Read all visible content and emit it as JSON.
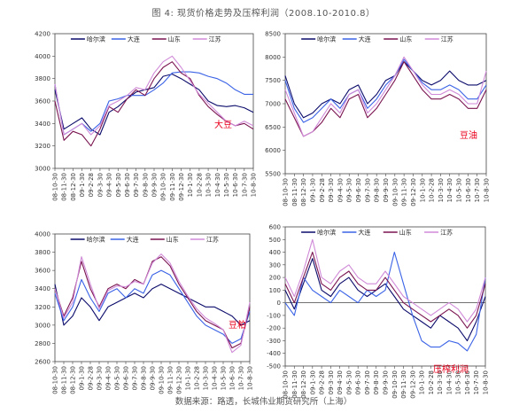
{
  "figure": {
    "title": "图 4:  现货价格走势及压榨利润（2008.10-2010.8）",
    "source": "数据来源：路透，长城伟业期货研究所（上海）"
  },
  "colors": {
    "哈尔滨": "#0b0b6b",
    "大连": "#3b63e6",
    "山东": "#7a1450",
    "江苏": "#d08ad8"
  },
  "chart_data": [
    {
      "type": "line",
      "annotation": "大豆",
      "ylim": [
        3000,
        4200
      ],
      "yticks": [
        "3000",
        "3200",
        "3400",
        "3600",
        "3800",
        "4000",
        "4200"
      ],
      "xticks": [
        "08-10-30",
        "08-11-30",
        "08-12-30",
        "09-1-30",
        "09-2-28",
        "09-3-30",
        "09-4-30",
        "09-5-30",
        "09-6-30",
        "09-7-30",
        "09-8-30",
        "09-9-30",
        "09-10-30",
        "09-11-30",
        "09-12-30",
        "10-1-30",
        "10-2-28",
        "10-3-30",
        "10-4-30",
        "10-5-30",
        "10-6-30",
        "10-7-30",
        "10-8-30"
      ],
      "x": [
        0,
        1,
        2,
        3,
        4,
        5,
        6,
        7,
        8,
        9,
        10,
        11,
        12,
        13,
        14,
        15,
        16,
        17,
        18,
        19,
        20,
        21,
        22
      ],
      "legend": [
        "哈尔滨",
        "大连",
        "山东",
        "江苏"
      ],
      "series": [
        {
          "name": "哈尔滨",
          "values": [
            3700,
            3350,
            3400,
            3450,
            3350,
            3300,
            3500,
            3550,
            3620,
            3680,
            3700,
            3720,
            3820,
            3840,
            3800,
            3750,
            3700,
            3600,
            3560,
            3550,
            3560,
            3540,
            3500
          ]
        },
        {
          "name": "大连",
          "values": [
            3750,
            3300,
            3350,
            3400,
            3330,
            3400,
            3600,
            3620,
            3650,
            3650,
            3650,
            3700,
            3760,
            3850,
            3860,
            3860,
            3850,
            3820,
            3800,
            3760,
            3700,
            3660,
            3660
          ]
        },
        {
          "name": "山东",
          "values": [
            3600,
            3250,
            3330,
            3300,
            3200,
            3350,
            3550,
            3500,
            3620,
            3700,
            3650,
            3800,
            3900,
            3950,
            3850,
            3800,
            3650,
            3550,
            3480,
            3420,
            3380,
            3400,
            3350
          ]
        },
        {
          "name": "江苏",
          "values": [
            3750,
            3300,
            3350,
            3400,
            3300,
            3380,
            3560,
            3600,
            3650,
            3720,
            3700,
            3850,
            3950,
            4000,
            3900,
            3780,
            3660,
            3580,
            3500,
            3420,
            3380,
            3420,
            3380
          ]
        }
      ]
    },
    {
      "type": "line",
      "annotation": "豆油",
      "ylim": [
        5500,
        8500
      ],
      "yticks": [
        "5500",
        "6000",
        "6500",
        "7000",
        "7500",
        "8000",
        "8500"
      ],
      "xticks": [
        "08-10-30",
        "08-11-30",
        "08-12-30",
        "09-1-30",
        "09-2-28",
        "09-3-30",
        "09-4-30",
        "09-5-30",
        "09-6-30",
        "09-7-30",
        "09-8-30",
        "09-9-30",
        "09-10-30",
        "09-11-30",
        "09-12-30",
        "10-1-30",
        "10-2-28",
        "10-3-30",
        "10-4-30",
        "10-5-30",
        "10-6-30",
        "10-7-30",
        "10-8-30"
      ],
      "x": [
        0,
        1,
        2,
        3,
        4,
        5,
        6,
        7,
        8,
        9,
        10,
        11,
        12,
        13,
        14,
        15,
        16,
        17,
        18,
        19,
        20,
        21,
        22
      ],
      "legend": [
        "哈尔滨",
        "大连",
        "山东",
        "江苏"
      ],
      "series": [
        {
          "name": "哈尔滨",
          "values": [
            7600,
            7000,
            6700,
            6800,
            7000,
            7100,
            7000,
            7300,
            7400,
            7000,
            7200,
            7500,
            7600,
            7900,
            7700,
            7500,
            7400,
            7500,
            7700,
            7500,
            7400,
            7400,
            7500
          ]
        },
        {
          "name": "大连",
          "values": [
            7500,
            6900,
            6600,
            6700,
            6900,
            7100,
            6900,
            7200,
            7300,
            6900,
            7100,
            7400,
            7600,
            7950,
            7700,
            7450,
            7300,
            7300,
            7400,
            7300,
            7100,
            7100,
            7400
          ]
        },
        {
          "name": "山东",
          "values": [
            7100,
            6700,
            6300,
            6400,
            6600,
            6900,
            6700,
            7100,
            7200,
            6700,
            6900,
            7200,
            7500,
            7900,
            7600,
            7300,
            7100,
            7100,
            7200,
            7100,
            6900,
            6900,
            7300
          ]
        },
        {
          "name": "江苏",
          "values": [
            7300,
            6800,
            6300,
            6400,
            6700,
            7000,
            6800,
            7200,
            7300,
            6800,
            7000,
            7300,
            7600,
            8000,
            7700,
            7400,
            7200,
            7200,
            7300,
            7200,
            7000,
            7000,
            7700
          ]
        }
      ]
    },
    {
      "type": "line",
      "annotation": "豆粕",
      "ylim": [
        2600,
        4000
      ],
      "yticks": [
        "2600",
        "2800",
        "3000",
        "3200",
        "3400",
        "3600",
        "3800",
        "4000"
      ],
      "xticks": [
        "08-10-30",
        "08-11-30",
        "08-12-30",
        "09-1-30",
        "09-2-28",
        "09-3-30",
        "09-4-30",
        "09-5-30",
        "09-6-30",
        "09-7-30",
        "09-8-30",
        "09-9-30",
        "09-10-30",
        "09-11-30",
        "09-12-30",
        "10-1-30",
        "10-2-28",
        "10-3-30",
        "10-4-30",
        "10-5-30",
        "10-6-30",
        "10-7-30",
        "10-8-30"
      ],
      "x": [
        0,
        1,
        2,
        3,
        4,
        5,
        6,
        7,
        8,
        9,
        10,
        11,
        12,
        13,
        14,
        15,
        16,
        17,
        18,
        19,
        20,
        21,
        22
      ],
      "legend": [
        "哈尔滨",
        "大连",
        "山东",
        "江苏"
      ],
      "series": [
        {
          "name": "哈尔滨",
          "values": [
            3450,
            3000,
            3100,
            3300,
            3200,
            3050,
            3200,
            3250,
            3300,
            3350,
            3300,
            3400,
            3450,
            3400,
            3350,
            3300,
            3250,
            3200,
            3200,
            3150,
            3100,
            3000,
            3050
          ]
        },
        {
          "name": "大连",
          "values": [
            3350,
            3050,
            3200,
            3500,
            3300,
            3150,
            3350,
            3400,
            3300,
            3400,
            3350,
            3550,
            3600,
            3550,
            3400,
            3250,
            3100,
            3000,
            2950,
            2900,
            2800,
            2850,
            3150
          ]
        },
        {
          "name": "山东",
          "values": [
            3400,
            3100,
            3300,
            3700,
            3400,
            3200,
            3400,
            3450,
            3400,
            3500,
            3450,
            3700,
            3750,
            3650,
            3450,
            3300,
            3150,
            3050,
            3000,
            2950,
            2750,
            2800,
            3200
          ]
        },
        {
          "name": "江苏",
          "values": [
            3400,
            3080,
            3250,
            3750,
            3450,
            3180,
            3380,
            3430,
            3420,
            3480,
            3450,
            3680,
            3780,
            3680,
            3480,
            3320,
            3180,
            3080,
            3020,
            2950,
            2700,
            2780,
            3250
          ]
        }
      ]
    },
    {
      "type": "line",
      "annotation": "压榨利润",
      "ylim": [
        -500,
        600
      ],
      "yticks": [
        "-500",
        "-400",
        "-300",
        "-200",
        "-100",
        "0",
        "100",
        "200",
        "300",
        "400",
        "500",
        "600"
      ],
      "xticks": [
        "08-10-30",
        "08-11-30",
        "08-12-30",
        "09-1-30",
        "09-2-28",
        "09-3-30",
        "09-4-30",
        "09-5-30",
        "09-6-30",
        "09-7-30",
        "09-8-30",
        "09-9-30",
        "09-10-30",
        "09-11-30",
        "09-12-30",
        "10-1-30",
        "10-2-28",
        "10-3-30",
        "10-4-30",
        "10-5-30",
        "10-6-30",
        "10-7-30",
        "10-8-30"
      ],
      "x": [
        0,
        1,
        2,
        3,
        4,
        5,
        6,
        7,
        8,
        9,
        10,
        11,
        12,
        13,
        14,
        15,
        16,
        17,
        18,
        19,
        20,
        21,
        22
      ],
      "legend": [
        "哈尔滨",
        "大连",
        "山东",
        "江苏"
      ],
      "series": [
        {
          "name": "哈尔滨",
          "values": [
            100,
            -50,
            150,
            350,
            100,
            50,
            150,
            200,
            100,
            50,
            100,
            150,
            50,
            -50,
            -100,
            -150,
            -200,
            -100,
            -150,
            -200,
            -300,
            -150,
            50
          ]
        },
        {
          "name": "大连",
          "values": [
            0,
            -100,
            200,
            100,
            50,
            0,
            100,
            50,
            0,
            100,
            50,
            100,
            400,
            150,
            -100,
            -300,
            -350,
            -350,
            -300,
            -320,
            -380,
            -250,
            200
          ]
        },
        {
          "name": "山东",
          "values": [
            150,
            0,
            200,
            400,
            150,
            100,
            200,
            250,
            150,
            100,
            100,
            200,
            100,
            0,
            -50,
            -100,
            -150,
            -100,
            -50,
            -100,
            -200,
            -100,
            150
          ]
        },
        {
          "name": "江苏",
          "values": [
            200,
            50,
            250,
            500,
            200,
            150,
            250,
            300,
            200,
            150,
            150,
            250,
            150,
            50,
            0,
            -50,
            -100,
            -50,
            0,
            -50,
            -150,
            -50,
            200
          ]
        }
      ]
    }
  ]
}
